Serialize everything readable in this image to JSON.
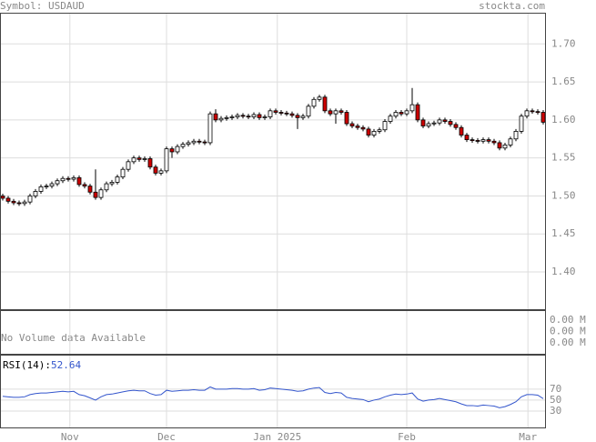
{
  "chart_data": {
    "type": "candlestick",
    "symbol_label": "Symbol: USDAUD",
    "site": "stockta.com",
    "up_color": "#ffffff",
    "down_color": "#cc0000",
    "grid": true,
    "xlim": [
      -0.5,
      99.5
    ],
    "xticks": [
      {
        "value": 12.3,
        "label": "Nov"
      },
      {
        "value": 30,
        "label": "Dec"
      },
      {
        "value": 50.3,
        "label": "Jan 2025"
      },
      {
        "value": 74,
        "label": "Feb"
      },
      {
        "value": 96.2,
        "label": "Mar"
      }
    ],
    "ylim": [
      1.351,
      1.741
    ],
    "yticks": [
      {
        "value": 1.4,
        "label": "1.40"
      },
      1.45,
      {
        "value": 1.5,
        "label": "1.50"
      },
      1.55,
      {
        "value": 1.6,
        "label": "1.60"
      },
      1.65,
      {
        "value": 1.7,
        "label": "1.70"
      }
    ],
    "open": [
      1.5,
      1.497,
      1.493,
      1.491,
      1.49,
      1.492,
      1.5,
      1.506,
      1.512,
      1.513,
      1.516,
      1.52,
      1.523,
      1.522,
      1.524,
      1.515,
      1.513,
      1.505,
      1.498,
      1.508,
      1.516,
      1.518,
      1.525,
      1.535,
      1.545,
      1.55,
      1.548,
      1.549,
      1.538,
      1.53,
      1.533,
      1.562,
      1.558,
      1.565,
      1.568,
      1.57,
      1.572,
      1.571,
      1.57,
      1.608,
      1.6,
      1.602,
      1.603,
      1.604,
      1.606,
      1.605,
      1.604,
      1.607,
      1.603,
      1.604,
      1.612,
      1.61,
      1.609,
      1.608,
      1.606,
      1.603,
      1.605,
      1.618,
      1.627,
      1.63,
      1.612,
      1.608,
      1.612,
      1.61,
      1.595,
      1.592,
      1.59,
      1.588,
      1.58,
      1.585,
      1.587,
      1.598,
      1.605,
      1.61,
      1.608,
      1.612,
      1.62,
      1.6,
      1.592,
      1.595,
      1.596,
      1.6,
      1.598,
      1.594,
      1.59,
      1.58,
      1.574,
      1.573,
      1.572,
      1.574,
      1.572,
      1.57,
      1.563,
      1.567,
      1.575,
      1.585,
      1.605,
      1.612,
      1.611,
      1.61
    ],
    "high": [
      1.503,
      1.5,
      1.496,
      1.494,
      1.495,
      1.503,
      1.509,
      1.515,
      1.516,
      1.519,
      1.523,
      1.526,
      1.526,
      1.527,
      1.527,
      1.518,
      1.516,
      1.535,
      1.511,
      1.519,
      1.521,
      1.528,
      1.538,
      1.548,
      1.553,
      1.553,
      1.552,
      1.552,
      1.541,
      1.536,
      1.565,
      1.565,
      1.568,
      1.571,
      1.573,
      1.575,
      1.575,
      1.574,
      1.611,
      1.614,
      1.605,
      1.606,
      1.607,
      1.609,
      1.609,
      1.608,
      1.61,
      1.61,
      1.607,
      1.615,
      1.615,
      1.613,
      1.612,
      1.611,
      1.609,
      1.608,
      1.621,
      1.63,
      1.633,
      1.633,
      1.615,
      1.615,
      1.615,
      1.613,
      1.598,
      1.595,
      1.593,
      1.591,
      1.588,
      1.59,
      1.601,
      1.608,
      1.613,
      1.613,
      1.615,
      1.642,
      1.623,
      1.603,
      1.598,
      1.599,
      1.603,
      1.603,
      1.601,
      1.597,
      1.593,
      1.583,
      1.577,
      1.576,
      1.577,
      1.577,
      1.575,
      1.573,
      1.57,
      1.578,
      1.588,
      1.608,
      1.615,
      1.615,
      1.614,
      1.613
    ],
    "low": [
      1.494,
      1.49,
      1.488,
      1.487,
      1.487,
      1.489,
      1.497,
      1.503,
      1.509,
      1.51,
      1.513,
      1.517,
      1.519,
      1.519,
      1.512,
      1.51,
      1.502,
      1.495,
      1.495,
      1.505,
      1.513,
      1.515,
      1.522,
      1.532,
      1.542,
      1.545,
      1.545,
      1.535,
      1.527,
      1.527,
      1.53,
      1.55,
      1.555,
      1.562,
      1.565,
      1.567,
      1.568,
      1.567,
      1.567,
      1.597,
      1.597,
      1.599,
      1.6,
      1.601,
      1.602,
      1.601,
      1.601,
      1.6,
      1.6,
      1.601,
      1.607,
      1.606,
      1.605,
      1.603,
      1.588,
      1.6,
      1.602,
      1.615,
      1.624,
      1.609,
      1.605,
      1.595,
      1.607,
      1.592,
      1.589,
      1.587,
      1.585,
      1.577,
      1.577,
      1.582,
      1.584,
      1.595,
      1.602,
      1.605,
      1.605,
      1.609,
      1.597,
      1.589,
      1.589,
      1.592,
      1.593,
      1.595,
      1.591,
      1.587,
      1.577,
      1.571,
      1.57,
      1.569,
      1.569,
      1.569,
      1.567,
      1.56,
      1.56,
      1.564,
      1.572,
      1.582,
      1.602,
      1.608,
      1.607,
      1.594
    ],
    "close": [
      1.497,
      1.493,
      1.491,
      1.49,
      1.492,
      1.5,
      1.506,
      1.512,
      1.513,
      1.516,
      1.52,
      1.523,
      1.522,
      1.524,
      1.515,
      1.513,
      1.505,
      1.498,
      1.508,
      1.516,
      1.518,
      1.525,
      1.535,
      1.545,
      1.55,
      1.548,
      1.549,
      1.538,
      1.53,
      1.533,
      1.562,
      1.558,
      1.565,
      1.568,
      1.57,
      1.572,
      1.571,
      1.57,
      1.608,
      1.6,
      1.602,
      1.603,
      1.604,
      1.606,
      1.605,
      1.604,
      1.607,
      1.603,
      1.604,
      1.612,
      1.61,
      1.609,
      1.608,
      1.606,
      1.603,
      1.605,
      1.618,
      1.627,
      1.63,
      1.612,
      1.608,
      1.612,
      1.61,
      1.595,
      1.592,
      1.59,
      1.588,
      1.58,
      1.585,
      1.587,
      1.598,
      1.605,
      1.61,
      1.608,
      1.612,
      1.62,
      1.6,
      1.592,
      1.595,
      1.596,
      1.6,
      1.598,
      1.594,
      1.59,
      1.58,
      1.574,
      1.573,
      1.572,
      1.574,
      1.572,
      1.57,
      1.563,
      1.567,
      1.575,
      1.585,
      1.605,
      1.612,
      1.611,
      1.61,
      1.597
    ],
    "volume": {
      "message": "No Volume data Available",
      "ticks": [
        "0.00 M",
        "0.00 M",
        "0.00 M"
      ]
    },
    "rsi": {
      "label": "RSI(14):",
      "color": "#3355cc",
      "ylim": [
        0,
        133
      ],
      "yticks": [
        70,
        50,
        30
      ],
      "values": [
        57,
        56,
        55,
        55,
        56,
        60,
        62,
        63,
        63,
        64,
        65,
        66,
        65,
        66,
        60,
        58,
        54,
        50,
        56,
        60,
        61,
        63,
        65,
        67,
        68,
        67,
        67,
        62,
        59,
        60,
        68,
        66,
        67,
        68,
        68,
        69,
        68,
        68,
        74,
        70,
        70,
        70,
        71,
        71,
        70,
        70,
        71,
        68,
        69,
        72,
        71,
        70,
        69,
        68,
        66,
        67,
        70,
        72,
        73,
        64,
        62,
        64,
        63,
        55,
        53,
        52,
        51,
        47,
        50,
        52,
        56,
        59,
        61,
        60,
        61,
        63,
        52,
        48,
        50,
        51,
        53,
        51,
        49,
        47,
        43,
        40,
        40,
        39,
        41,
        40,
        39,
        36,
        38,
        42,
        47,
        56,
        60,
        60,
        59,
        52.64
      ]
    }
  }
}
